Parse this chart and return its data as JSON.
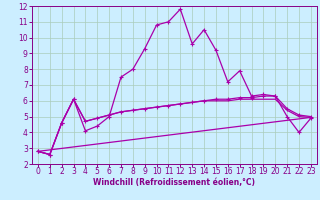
{
  "xlabel": "Windchill (Refroidissement éolien,°C)",
  "bg_color": "#cceeff",
  "grid_color": "#aaccbb",
  "line_color": "#aa00aa",
  "xlim": [
    -0.5,
    23.5
  ],
  "ylim": [
    2,
    12
  ],
  "xticks": [
    0,
    1,
    2,
    3,
    4,
    5,
    6,
    7,
    8,
    9,
    10,
    11,
    12,
    13,
    14,
    15,
    16,
    17,
    18,
    19,
    20,
    21,
    22,
    23
  ],
  "yticks": [
    2,
    3,
    4,
    5,
    6,
    7,
    8,
    9,
    10,
    11,
    12
  ],
  "series1_x": [
    0,
    1,
    2,
    3,
    4,
    5,
    6,
    7,
    8,
    9,
    10,
    11,
    12,
    13,
    14,
    15,
    16,
    17,
    18,
    19,
    20,
    21,
    22,
    23
  ],
  "series1_y": [
    2.8,
    2.6,
    4.6,
    6.1,
    4.1,
    4.4,
    5.0,
    7.5,
    8.0,
    9.3,
    10.8,
    11.0,
    11.8,
    9.6,
    10.5,
    9.2,
    7.2,
    7.9,
    6.3,
    6.4,
    6.3,
    5.0,
    4.0,
    4.9
  ],
  "series2_x": [
    0,
    1,
    2,
    3,
    4,
    5,
    6,
    7,
    8,
    9,
    10,
    11,
    12,
    13,
    14,
    15,
    16,
    17,
    18,
    19,
    20,
    21,
    22,
    23
  ],
  "series2_y": [
    2.8,
    2.6,
    4.6,
    6.1,
    4.7,
    4.9,
    5.1,
    5.3,
    5.4,
    5.5,
    5.6,
    5.7,
    5.8,
    5.9,
    6.0,
    6.1,
    6.1,
    6.2,
    6.2,
    6.3,
    6.3,
    5.5,
    5.1,
    5.0
  ],
  "series3_x": [
    0,
    1,
    2,
    3,
    4,
    5,
    6,
    7,
    8,
    9,
    10,
    11,
    12,
    13,
    14,
    15,
    16,
    17,
    18,
    19,
    20,
    21,
    22,
    23
  ],
  "series3_y": [
    2.8,
    2.6,
    4.6,
    6.1,
    4.7,
    4.9,
    5.1,
    5.3,
    5.4,
    5.5,
    5.6,
    5.7,
    5.8,
    5.9,
    6.0,
    6.0,
    6.0,
    6.1,
    6.1,
    6.1,
    6.1,
    5.4,
    5.0,
    4.95
  ],
  "series4_x": [
    0,
    23
  ],
  "series4_y": [
    2.8,
    4.95
  ],
  "marker": "+",
  "markersize": 3.5,
  "linewidth": 0.9,
  "tick_fontsize": 5.5,
  "label_fontsize": 5.5
}
